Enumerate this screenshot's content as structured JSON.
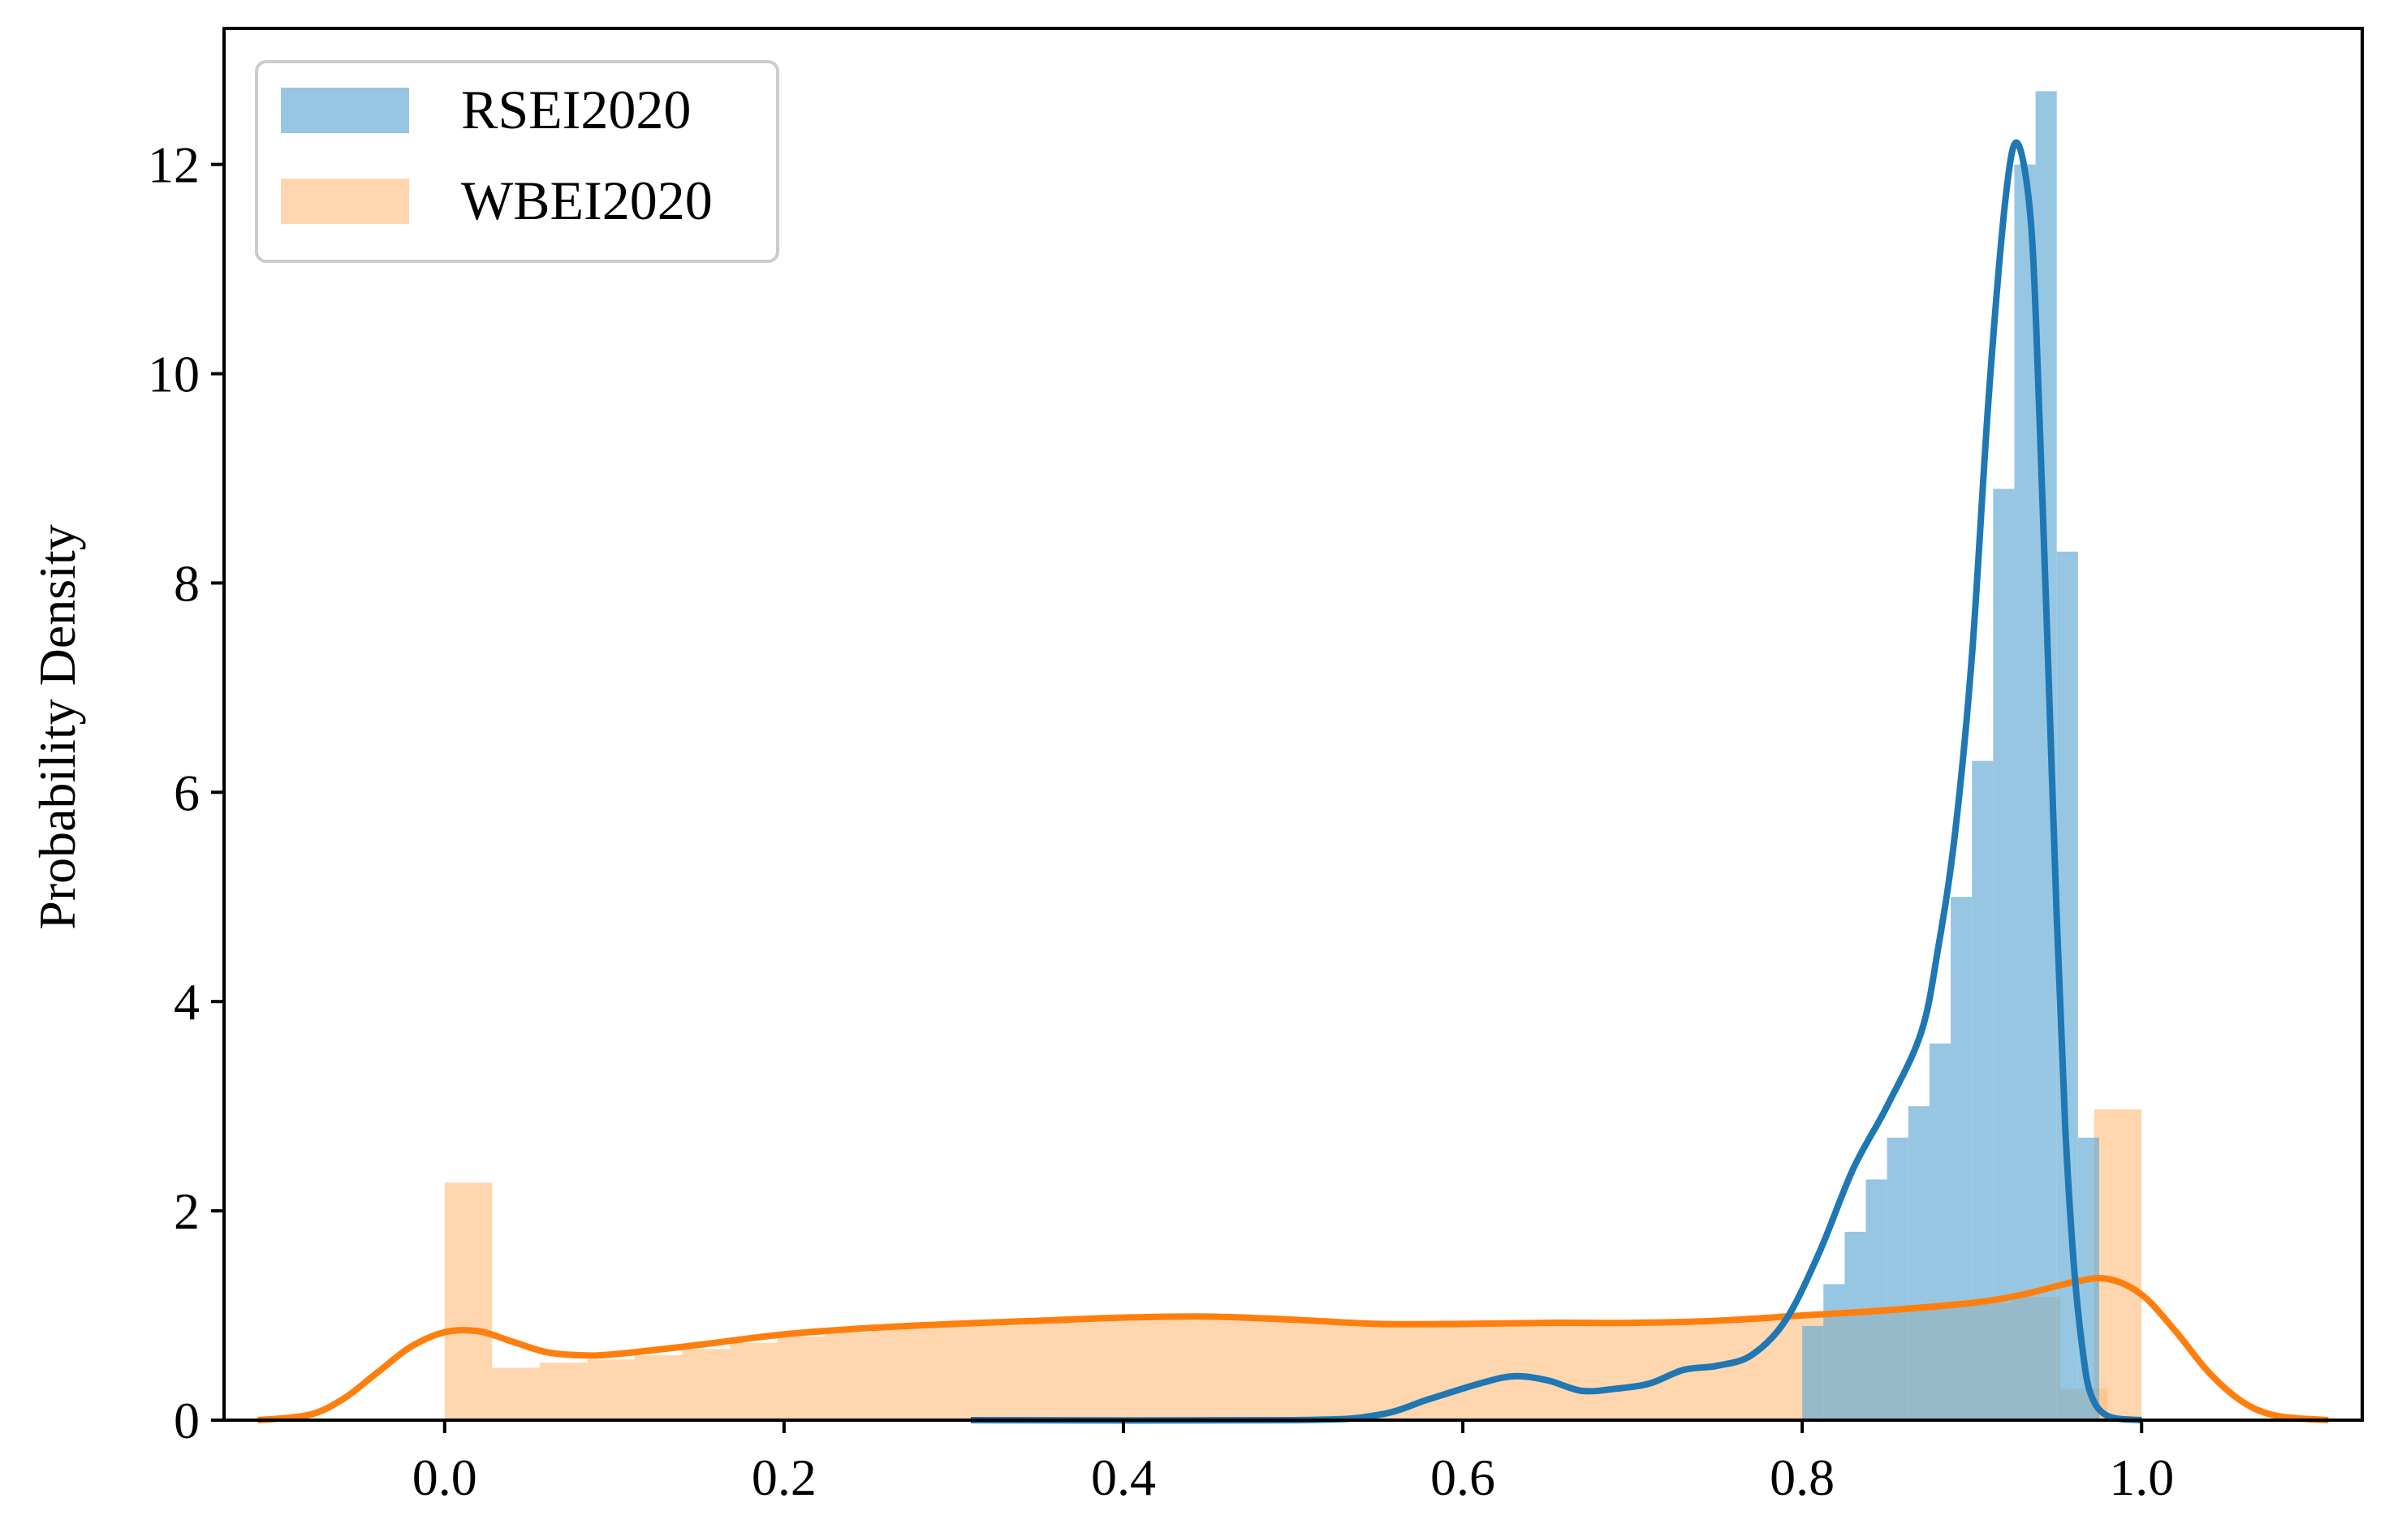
{
  "chart_data": {
    "type": "histogram-kde",
    "xlabel": "",
    "ylabel": "Probability Density",
    "xlim": [
      -0.13,
      1.13
    ],
    "ylim": [
      0,
      13.3
    ],
    "x_ticks": [
      0.0,
      0.2,
      0.4,
      0.6,
      0.8,
      1.0
    ],
    "x_tick_labels": [
      "0.0",
      "0.2",
      "0.4",
      "0.6",
      "0.8",
      "1.0"
    ],
    "y_ticks": [
      0,
      2,
      4,
      6,
      8,
      10,
      12
    ],
    "y_tick_labels": [
      "0",
      "2",
      "4",
      "6",
      "8",
      "10",
      "12"
    ],
    "legend_position": "top-left",
    "series": [
      {
        "name": "RSEI2020",
        "color": "#1f77b4",
        "hist_color": "#6baed6",
        "bin_width": 0.0125,
        "bins": [
          {
            "x0": 0.8,
            "value": 0.9
          },
          {
            "x0": 0.8125,
            "value": 1.3
          },
          {
            "x0": 0.825,
            "value": 1.8
          },
          {
            "x0": 0.8375,
            "value": 2.3
          },
          {
            "x0": 0.85,
            "value": 2.7
          },
          {
            "x0": 0.8625,
            "value": 3.0
          },
          {
            "x0": 0.875,
            "value": 3.6
          },
          {
            "x0": 0.8875,
            "value": 5.0
          },
          {
            "x0": 0.9,
            "value": 6.3
          },
          {
            "x0": 0.9125,
            "value": 8.9
          },
          {
            "x0": 0.925,
            "value": 12.0
          },
          {
            "x0": 0.9375,
            "value": 12.7
          },
          {
            "x0": 0.95,
            "value": 8.3
          },
          {
            "x0": 0.9625,
            "value": 2.7
          }
        ],
        "kde": {
          "x": [
            0.31,
            0.5,
            0.55,
            0.58,
            0.61,
            0.63,
            0.65,
            0.67,
            0.69,
            0.71,
            0.73,
            0.75,
            0.77,
            0.79,
            0.81,
            0.83,
            0.85,
            0.87,
            0.88,
            0.89,
            0.9,
            0.91,
            0.92,
            0.927,
            0.935,
            0.94,
            0.945,
            0.95,
            0.955,
            0.96,
            0.965,
            0.97,
            0.98,
            1.0
          ],
          "y": [
            0.0,
            0.0,
            0.05,
            0.2,
            0.35,
            0.42,
            0.38,
            0.28,
            0.3,
            0.35,
            0.48,
            0.52,
            0.62,
            0.95,
            1.6,
            2.4,
            3.0,
            3.7,
            4.5,
            5.6,
            7.3,
            9.8,
            11.7,
            12.2,
            11.4,
            9.5,
            7.2,
            4.8,
            2.8,
            1.5,
            0.7,
            0.25,
            0.04,
            0.0
          ]
        }
      },
      {
        "name": "WBEI2020",
        "color": "#ff7f0e",
        "hist_color": "#ffbb78",
        "bin_width": 0.028,
        "bins": [
          {
            "x0": 0.0,
            "value": 2.27
          },
          {
            "x0": 0.028,
            "value": 0.5
          },
          {
            "x0": 0.056,
            "value": 0.55
          },
          {
            "x0": 0.084,
            "value": 0.58
          },
          {
            "x0": 0.112,
            "value": 0.62
          },
          {
            "x0": 0.14,
            "value": 0.68
          },
          {
            "x0": 0.168,
            "value": 0.74
          },
          {
            "x0": 0.196,
            "value": 0.8
          },
          {
            "x0": 0.224,
            "value": 0.84
          },
          {
            "x0": 0.252,
            "value": 0.88
          },
          {
            "x0": 0.28,
            "value": 0.9
          },
          {
            "x0": 0.308,
            "value": 0.91
          },
          {
            "x0": 0.336,
            "value": 0.93
          },
          {
            "x0": 0.364,
            "value": 0.95
          },
          {
            "x0": 0.392,
            "value": 0.97
          },
          {
            "x0": 0.42,
            "value": 0.98
          },
          {
            "x0": 0.448,
            "value": 0.99
          },
          {
            "x0": 0.476,
            "value": 0.98
          },
          {
            "x0": 0.504,
            "value": 0.96
          },
          {
            "x0": 0.532,
            "value": 0.93
          },
          {
            "x0": 0.56,
            "value": 0.91
          },
          {
            "x0": 0.588,
            "value": 0.91
          },
          {
            "x0": 0.616,
            "value": 0.91
          },
          {
            "x0": 0.644,
            "value": 0.92
          },
          {
            "x0": 0.672,
            "value": 0.92
          },
          {
            "x0": 0.7,
            "value": 0.92
          },
          {
            "x0": 0.728,
            "value": 0.93
          },
          {
            "x0": 0.756,
            "value": 0.95
          },
          {
            "x0": 0.784,
            "value": 0.98
          },
          {
            "x0": 0.812,
            "value": 1.02
          },
          {
            "x0": 0.84,
            "value": 1.05
          },
          {
            "x0": 0.868,
            "value": 1.08
          },
          {
            "x0": 0.896,
            "value": 1.12
          },
          {
            "x0": 0.924,
            "value": 1.18
          },
          {
            "x0": 0.952,
            "value": 0.3
          },
          {
            "x0": 0.972,
            "value": 2.97
          }
        ],
        "kde": {
          "x": [
            -0.11,
            -0.08,
            -0.06,
            -0.04,
            -0.02,
            0.0,
            0.02,
            0.04,
            0.06,
            0.08,
            0.1,
            0.15,
            0.2,
            0.25,
            0.3,
            0.35,
            0.4,
            0.45,
            0.5,
            0.55,
            0.6,
            0.65,
            0.7,
            0.75,
            0.8,
            0.85,
            0.9,
            0.93,
            0.96,
            0.98,
            1.0,
            1.02,
            1.04,
            1.06,
            1.08,
            1.11
          ],
          "y": [
            0.0,
            0.05,
            0.2,
            0.45,
            0.7,
            0.84,
            0.85,
            0.75,
            0.65,
            0.62,
            0.63,
            0.72,
            0.82,
            0.88,
            0.92,
            0.95,
            0.98,
            0.99,
            0.96,
            0.92,
            0.92,
            0.93,
            0.93,
            0.95,
            1.0,
            1.05,
            1.12,
            1.2,
            1.32,
            1.35,
            1.2,
            0.85,
            0.45,
            0.17,
            0.04,
            0.0
          ]
        }
      }
    ]
  }
}
